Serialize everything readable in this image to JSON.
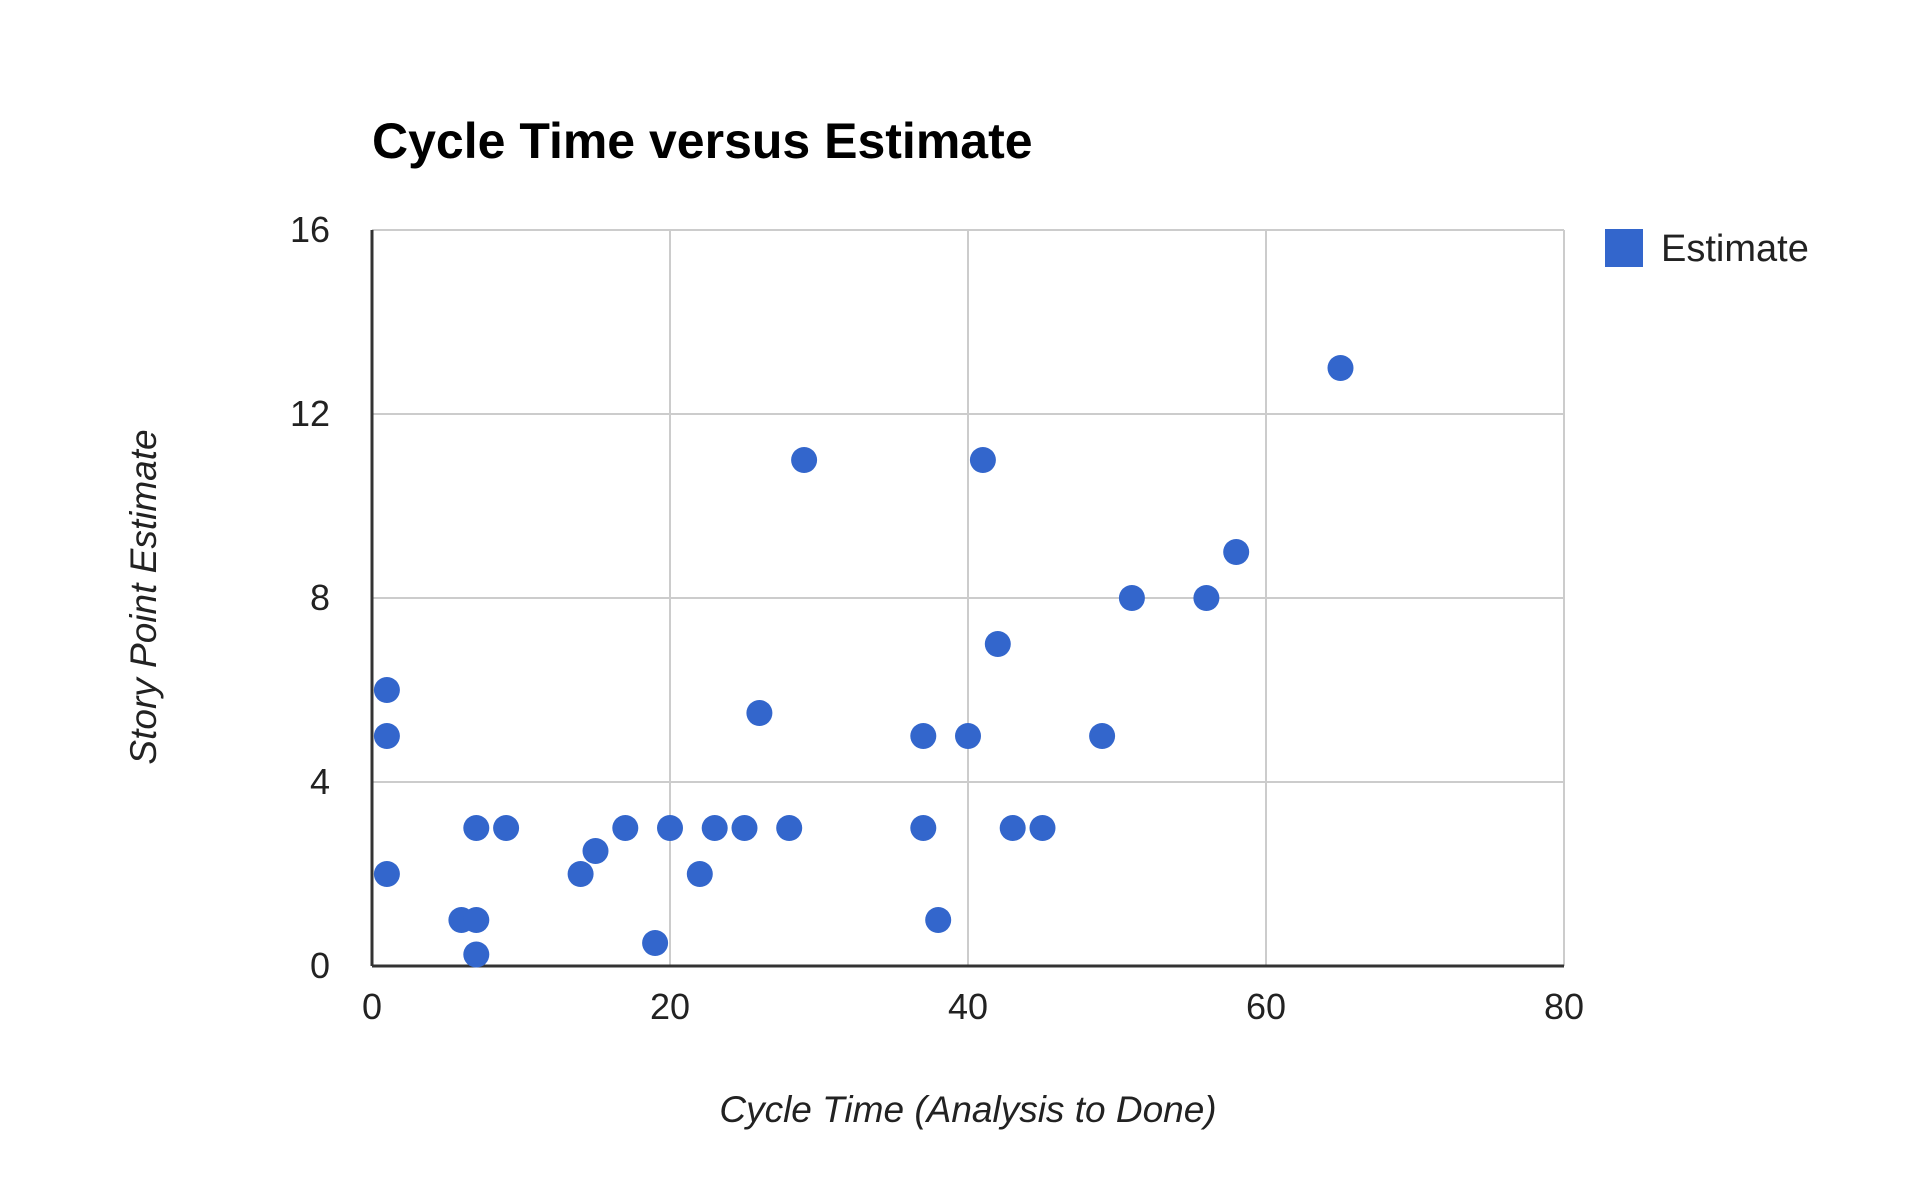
{
  "chart_data": {
    "type": "scatter",
    "title": "Cycle Time versus Estimate",
    "xlabel": "Cycle Time (Analysis to Done)",
    "ylabel": "Story Point Estimate",
    "xlim": [
      0,
      80
    ],
    "ylim": [
      0,
      16
    ],
    "x_ticks": [
      "0",
      "20",
      "40",
      "60",
      "80"
    ],
    "y_ticks": [
      "0",
      "4",
      "8",
      "12",
      "16"
    ],
    "grid": true,
    "legend_position": "top-right",
    "point_color": "#3366cc",
    "series": [
      {
        "name": "Estimate",
        "points": [
          {
            "x": 1,
            "y": 6
          },
          {
            "x": 1,
            "y": 5
          },
          {
            "x": 1,
            "y": 2
          },
          {
            "x": 6,
            "y": 1
          },
          {
            "x": 7,
            "y": 1
          },
          {
            "x": 7,
            "y": 0.25
          },
          {
            "x": 7,
            "y": 3
          },
          {
            "x": 9,
            "y": 3
          },
          {
            "x": 14,
            "y": 2
          },
          {
            "x": 15,
            "y": 2.5
          },
          {
            "x": 17,
            "y": 3
          },
          {
            "x": 19,
            "y": 0.5
          },
          {
            "x": 20,
            "y": 3
          },
          {
            "x": 22,
            "y": 2
          },
          {
            "x": 23,
            "y": 3
          },
          {
            "x": 25,
            "y": 3
          },
          {
            "x": 26,
            "y": 5.5
          },
          {
            "x": 28,
            "y": 3
          },
          {
            "x": 29,
            "y": 11
          },
          {
            "x": 37,
            "y": 5
          },
          {
            "x": 37,
            "y": 3
          },
          {
            "x": 38,
            "y": 1
          },
          {
            "x": 40,
            "y": 5
          },
          {
            "x": 41,
            "y": 11
          },
          {
            "x": 42,
            "y": 7
          },
          {
            "x": 43,
            "y": 3
          },
          {
            "x": 45,
            "y": 3
          },
          {
            "x": 49,
            "y": 5
          },
          {
            "x": 51,
            "y": 8
          },
          {
            "x": 56,
            "y": 8
          },
          {
            "x": 58,
            "y": 9
          },
          {
            "x": 65,
            "y": 13
          }
        ]
      }
    ]
  }
}
